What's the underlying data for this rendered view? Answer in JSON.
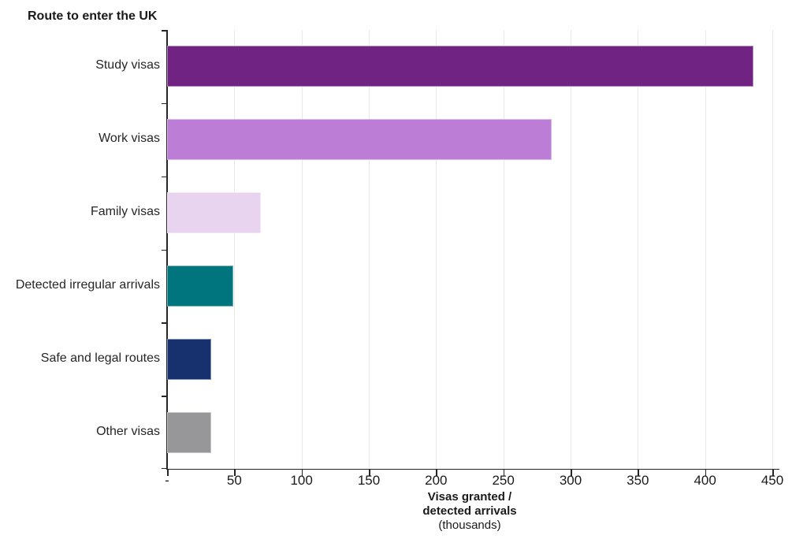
{
  "chart_data": {
    "type": "bar",
    "orientation": "horizontal",
    "title": "Route to enter the UK",
    "categories": [
      "Study visas",
      "Work visas",
      "Family visas",
      "Detected irregular arrivals",
      "Safe and legal routes",
      "Other visas"
    ],
    "values": [
      436,
      286,
      70,
      49,
      33,
      33
    ],
    "bar_colors": [
      "#702383",
      "#BB7DD6",
      "#E9D4F0",
      "#00757D",
      "#16316E",
      "#97979A"
    ],
    "xlabel_line1": "Visas granted /",
    "xlabel_line2": "detected arrivals",
    "xlabel_line3": "(thousands)",
    "xlim": [
      0,
      450
    ],
    "x_tick_values": [
      0,
      50,
      100,
      150,
      200,
      250,
      300,
      350,
      400,
      450
    ],
    "x_tick_labels": [
      "-",
      "50",
      "100",
      "150",
      "200",
      "250",
      "300",
      "350",
      "400",
      "450"
    ],
    "grid": "vertical-only",
    "legend": "none",
    "colors": {
      "axis": "#262626",
      "gridline": "#e9e9e9",
      "text": "#1a1a1a"
    }
  }
}
